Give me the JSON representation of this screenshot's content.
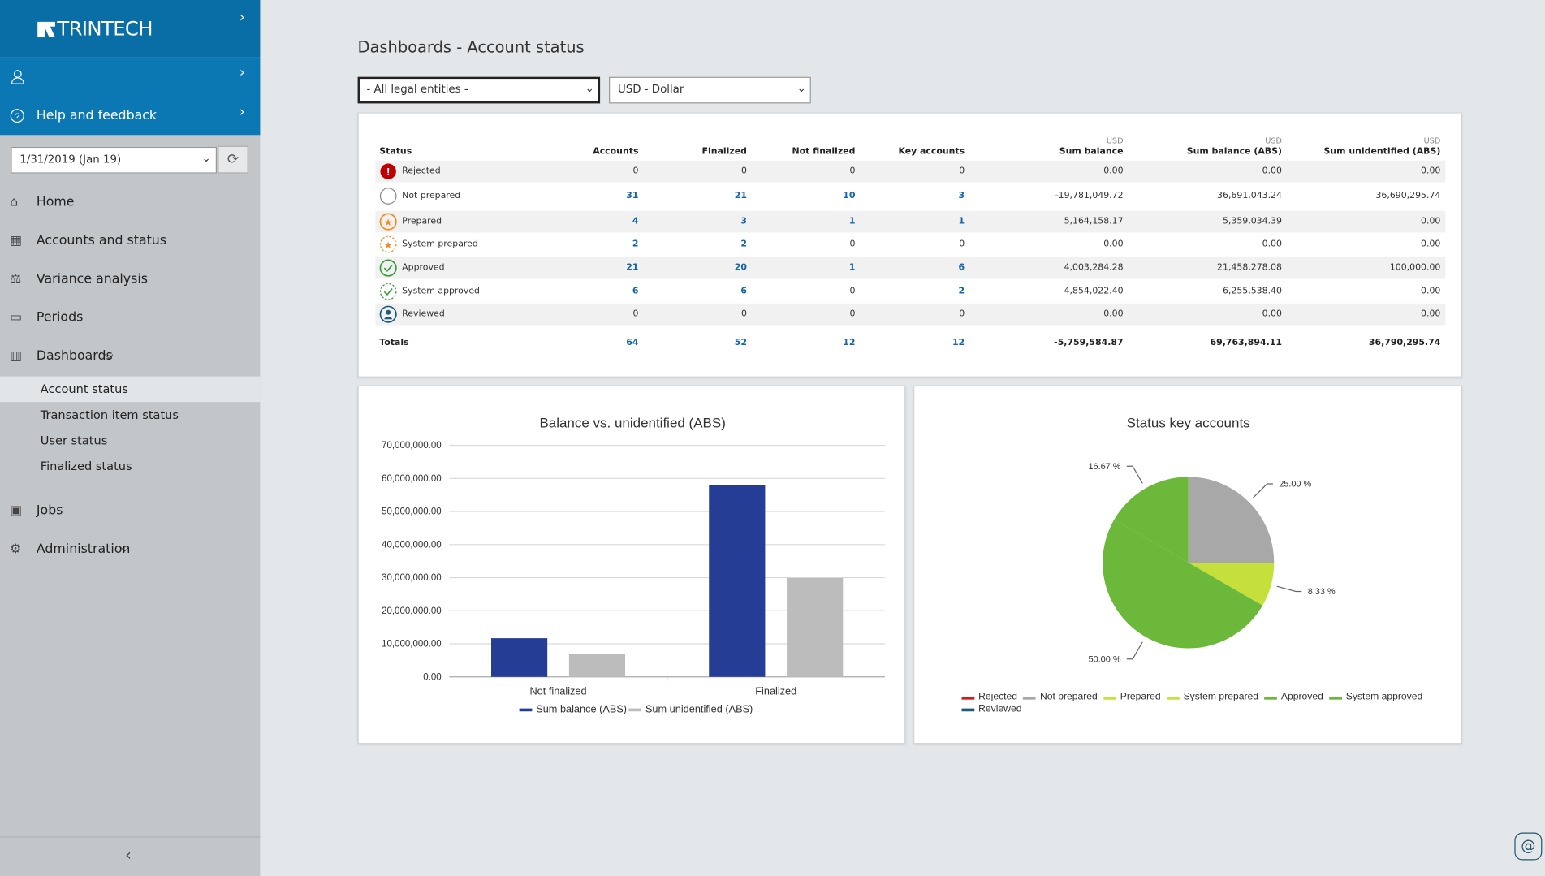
{
  "sidebar": {
    "brand": "TRINTECH",
    "help": "Help and feedback",
    "date": "1/31/2019 (Jan 19)",
    "nav": [
      "Home",
      "Accounts and status",
      "Variance analysis",
      "Periods",
      "Dashboards"
    ],
    "sub": [
      "Account status",
      "Transaction item status",
      "User status",
      "Finalized status"
    ],
    "nav2": [
      "Jobs",
      "Administration"
    ]
  },
  "header": {
    "title": "Dashboards - Account status",
    "entity": "- All legal entities -",
    "currency": "USD - Dollar"
  },
  "table": {
    "currency_note": "USD",
    "columns": [
      "Status",
      "Accounts",
      "Finalized",
      "Not finalized",
      "Key accounts",
      "Sum balance",
      "Sum balance (ABS)",
      "Sum unidentified (ABS)"
    ],
    "rows": [
      [
        "Rejected",
        "0",
        "0",
        "0",
        "0",
        "0.00",
        "0.00",
        "0.00"
      ],
      [
        "Not prepared",
        "31",
        "21",
        "10",
        "3",
        "-19,781,049.72",
        "36,691,043.24",
        "36,690,295.74"
      ],
      [
        "Prepared",
        "4",
        "3",
        "1",
        "1",
        "5,164,158.17",
        "5,359,034.39",
        "0.00"
      ],
      [
        "System prepared",
        "2",
        "2",
        "0",
        "0",
        "0.00",
        "0.00",
        "0.00"
      ],
      [
        "Approved",
        "21",
        "20",
        "1",
        "6",
        "4,003,284.28",
        "21,458,278.08",
        "100,000.00"
      ],
      [
        "System approved",
        "6",
        "6",
        "0",
        "2",
        "4,854,022.40",
        "6,255,538.40",
        "0.00"
      ],
      [
        "Reviewed",
        "0",
        "0",
        "0",
        "0",
        "0.00",
        "0.00",
        "0.00"
      ]
    ],
    "totals": [
      "Totals",
      "64",
      "52",
      "12",
      "12",
      "-5,759,584.87",
      "69,763,894.11",
      "36,790,295.74"
    ]
  },
  "chart_data": [
    {
      "type": "bar",
      "title": "Balance vs. unidentified (ABS)",
      "categories": [
        "Not finalized",
        "Finalized"
      ],
      "series": [
        {
          "name": "Sum balance (ABS)",
          "color": "#253d94",
          "values": [
            11700000,
            58100000
          ]
        },
        {
          "name": "Sum unidentified (ABS)",
          "color": "#bcbcbc",
          "values": [
            6900000,
            29900000
          ]
        }
      ],
      "ylim": [
        0,
        70000000
      ],
      "yticks": [
        {
          "value": 0,
          "label": "0.00"
        },
        {
          "value": 10000000,
          "label": "10,000,000.00"
        },
        {
          "value": 20000000,
          "label": "20,000,000.00"
        },
        {
          "value": 30000000,
          "label": "30,000,000.00"
        },
        {
          "value": 40000000,
          "label": "40,000,000.00"
        },
        {
          "value": 50000000,
          "label": "50,000,000.00"
        },
        {
          "value": 60000000,
          "label": "60,000,000.00"
        },
        {
          "value": 70000000,
          "label": "70,000,000.00"
        }
      ],
      "grid": true
    },
    {
      "type": "pie",
      "title": "Status key accounts",
      "categories": [
        "Rejected",
        "Not prepared",
        "Prepared",
        "System prepared",
        "Approved",
        "System approved",
        "Reviewed"
      ],
      "values": [
        0,
        25,
        8.33,
        0,
        50,
        16.67,
        0
      ],
      "value_labels": [
        null,
        "25.00 %",
        "8.33 %",
        null,
        "50.00 %",
        "16.67 %",
        null
      ],
      "colors": [
        "#d7191c",
        "#a8a8a8",
        "#c5e03a",
        "#c5e03a",
        "#6cb83b",
        "#6cb83b",
        "#1f5a7a"
      ]
    }
  ]
}
